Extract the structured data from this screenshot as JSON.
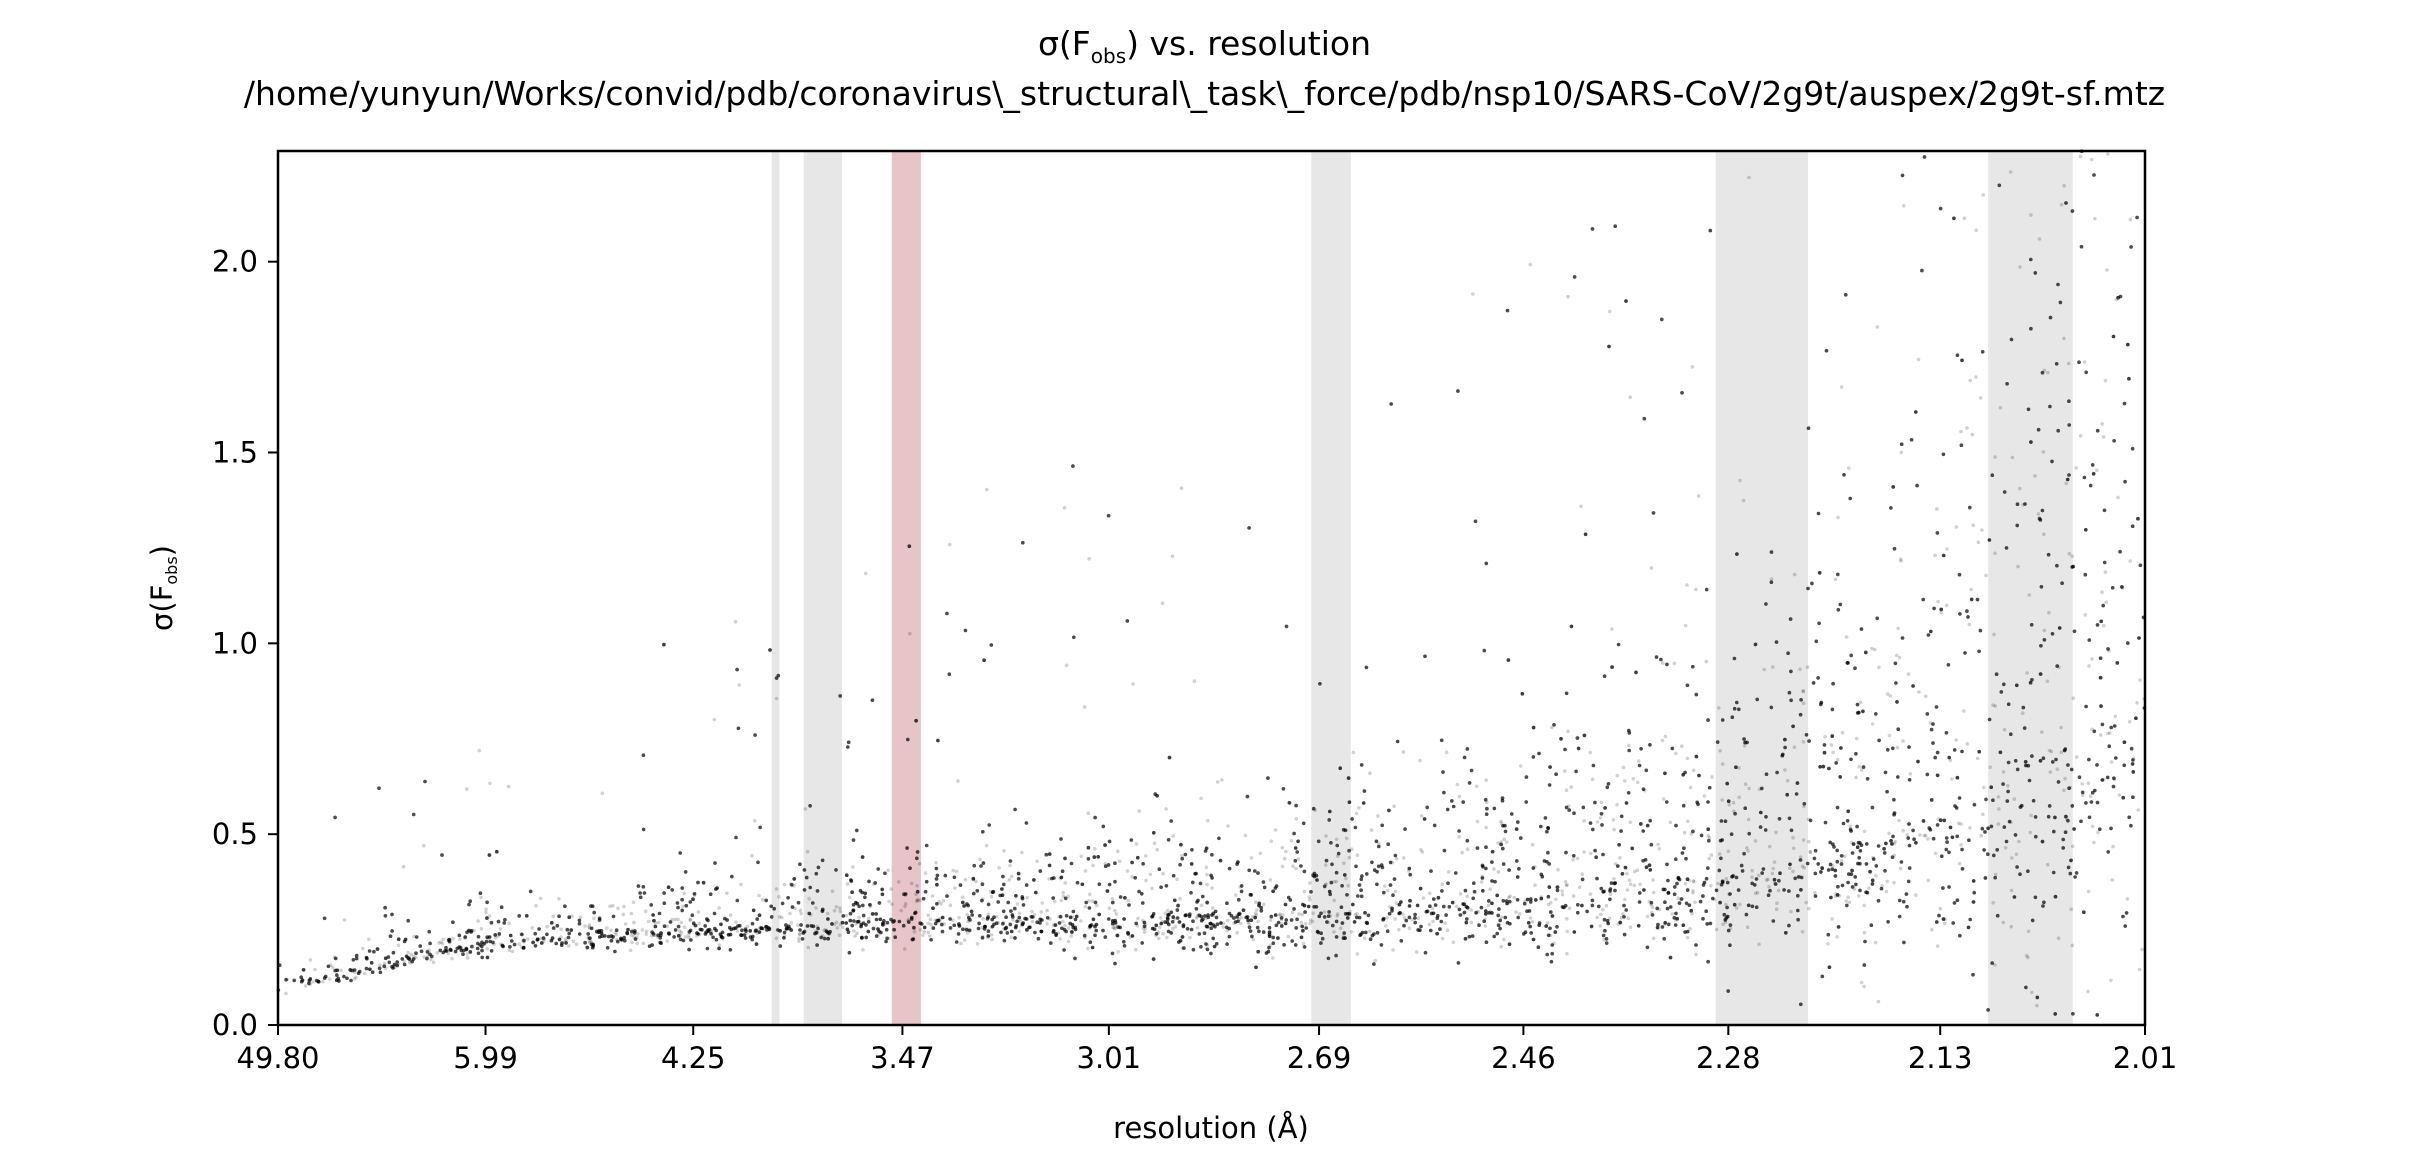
{
  "chart_data": {
    "type": "scatter",
    "title_main": "σ(F",
    "title_sub": "obs",
    "title_rest": ") vs. resolution",
    "subtitle": "/home/yunyun/Works/convid/pdb/coronavirus\\_structural\\_task\\_force/pdb/nsp10/SARS-CoV/2g9t/auspex/2g9t-sf.mtz",
    "xlabel": "resolution (Å)",
    "ylabel_main": "σ(F",
    "ylabel_sub": "obs",
    "ylabel_rest": ")",
    "x_scale": "inverse-squared resolution (1/d²)",
    "x_ticks": [
      "49.80",
      "5.99",
      "4.25",
      "3.47",
      "3.01",
      "2.69",
      "2.46",
      "2.28",
      "2.13",
      "2.01"
    ],
    "y_ticks": [
      "0.0",
      "0.5",
      "1.0",
      "1.5",
      "2.0"
    ],
    "ylim": [
      0,
      2.29
    ],
    "grid": false,
    "point_color": "#000000",
    "ice_ring_bands": [
      {
        "from": 3.9,
        "to": 3.87,
        "color": "#d9d9d9"
      },
      {
        "from": 3.78,
        "to": 3.65,
        "color": "#d9d9d9"
      },
      {
        "from": 3.5,
        "to": 3.42,
        "color": "#d9a0a6"
      },
      {
        "from": 2.7,
        "to": 2.65,
        "color": "#d9d9d9"
      },
      {
        "from": 2.29,
        "to": 2.22,
        "color": "#d9d9d9"
      },
      {
        "from": 2.1,
        "to": 2.05,
        "color": "#d9d9d9"
      }
    ],
    "trend": {
      "description": "dense band of sigma(Fobs) values rising with resolution",
      "median_points": [
        {
          "x": "49.80",
          "y": 0.1
        },
        {
          "x": "5.99",
          "y": 0.22
        },
        {
          "x": "4.25",
          "y": 0.25
        },
        {
          "x": "3.47",
          "y": 0.28
        },
        {
          "x": "3.01",
          "y": 0.29
        },
        {
          "x": "2.69",
          "y": 0.3
        },
        {
          "x": "2.46",
          "y": 0.33
        },
        {
          "x": "2.28",
          "y": 0.4
        },
        {
          "x": "2.13",
          "y": 0.55
        },
        {
          "x": "2.01",
          "y": 0.9
        }
      ]
    }
  }
}
